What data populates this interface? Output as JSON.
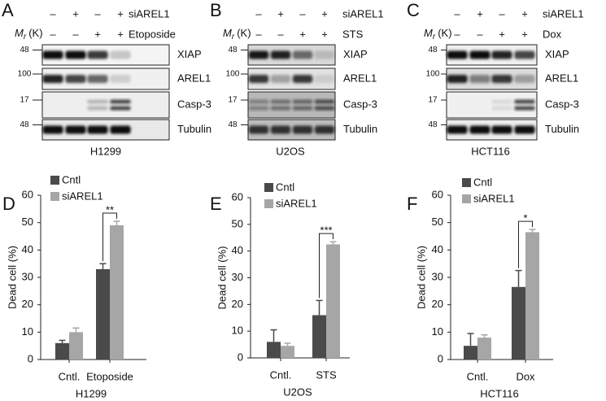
{
  "blots": [
    {
      "panel": "A",
      "rows": [
        {
          "signs": [
            "–",
            "+",
            "–",
            "+"
          ],
          "label": "siAREL1"
        },
        {
          "signs": [
            "–",
            "–",
            "+",
            "+"
          ],
          "label": "Etoposide"
        }
      ],
      "mr": {
        "symbol": "M",
        "subscript": "r",
        "unit": "(K)"
      },
      "markers": [
        48,
        100,
        17,
        48
      ],
      "bands": [
        "XIAP",
        "AREL1",
        "Casp-3",
        "Tubulin"
      ],
      "cell_line": "H1299"
    },
    {
      "panel": "B",
      "rows": [
        {
          "signs": [
            "–",
            "+",
            "–",
            "+"
          ],
          "label": "siAREL1"
        },
        {
          "signs": [
            "–",
            "–",
            "+",
            "+"
          ],
          "label": "STS"
        }
      ],
      "mr": {
        "symbol": "M",
        "subscript": "r",
        "unit": "(K)"
      },
      "markers": [
        48,
        100,
        17,
        48
      ],
      "bands": [
        "XIAP",
        "AREL1",
        "Casp-3",
        "Tubulin"
      ],
      "cell_line": "U2OS"
    },
    {
      "panel": "C",
      "rows": [
        {
          "signs": [
            "–",
            "+",
            "–",
            "+"
          ],
          "label": "siAREL1"
        },
        {
          "signs": [
            "–",
            "–",
            "+",
            "+"
          ],
          "label": "Dox"
        }
      ],
      "mr": {
        "symbol": "M",
        "subscript": "r",
        "unit": "(K)"
      },
      "markers": [
        48,
        100,
        17,
        48
      ],
      "bands": [
        "XIAP",
        "AREL1",
        "Casp-3",
        "Tubulin"
      ],
      "cell_line": "HCT116"
    }
  ],
  "chart_data": [
    {
      "type": "bar",
      "panel": "D",
      "ylabel": "Dead cell (%)",
      "xlabel": "H1299",
      "categories": [
        "Cntl.",
        "Etoposide"
      ],
      "series": [
        {
          "name": "Cntl",
          "color": "#4a4a4a",
          "values": [
            6,
            33
          ],
          "errors": [
            1,
            2
          ]
        },
        {
          "name": "siAREL1",
          "color": "#a6a6a6",
          "values": [
            10,
            49
          ],
          "errors": [
            1.5,
            1.5
          ]
        }
      ],
      "ylim": [
        0,
        60
      ],
      "yticks": [
        0,
        10,
        20,
        30,
        40,
        50,
        60
      ],
      "significance": "**"
    },
    {
      "type": "bar",
      "panel": "E",
      "ylabel": "Dead cell (%)",
      "xlabel": "U2OS",
      "categories": [
        "Cntl.",
        "STS"
      ],
      "series": [
        {
          "name": "Cntl",
          "color": "#4a4a4a",
          "values": [
            6,
            16
          ],
          "errors": [
            4.5,
            5.5
          ]
        },
        {
          "name": "siAREL1",
          "color": "#a6a6a6",
          "values": [
            4.5,
            42.5
          ],
          "errors": [
            1,
            1
          ]
        }
      ],
      "ylim": [
        0,
        60
      ],
      "yticks": [
        0,
        10,
        20,
        30,
        40,
        50,
        60
      ],
      "significance": "***"
    },
    {
      "type": "bar",
      "panel": "F",
      "ylabel": "Dead cell (%)",
      "xlabel": "HCT116",
      "categories": [
        "Cntl.",
        "Dox"
      ],
      "series": [
        {
          "name": "Cntl",
          "color": "#4a4a4a",
          "values": [
            5,
            26.5
          ],
          "errors": [
            4.5,
            6
          ]
        },
        {
          "name": "siAREL1",
          "color": "#a6a6a6",
          "values": [
            8,
            46.5
          ],
          "errors": [
            1,
            1
          ]
        }
      ],
      "ylim": [
        0,
        60
      ],
      "yticks": [
        0,
        10,
        20,
        30,
        40,
        50,
        60
      ],
      "significance": "*"
    }
  ]
}
